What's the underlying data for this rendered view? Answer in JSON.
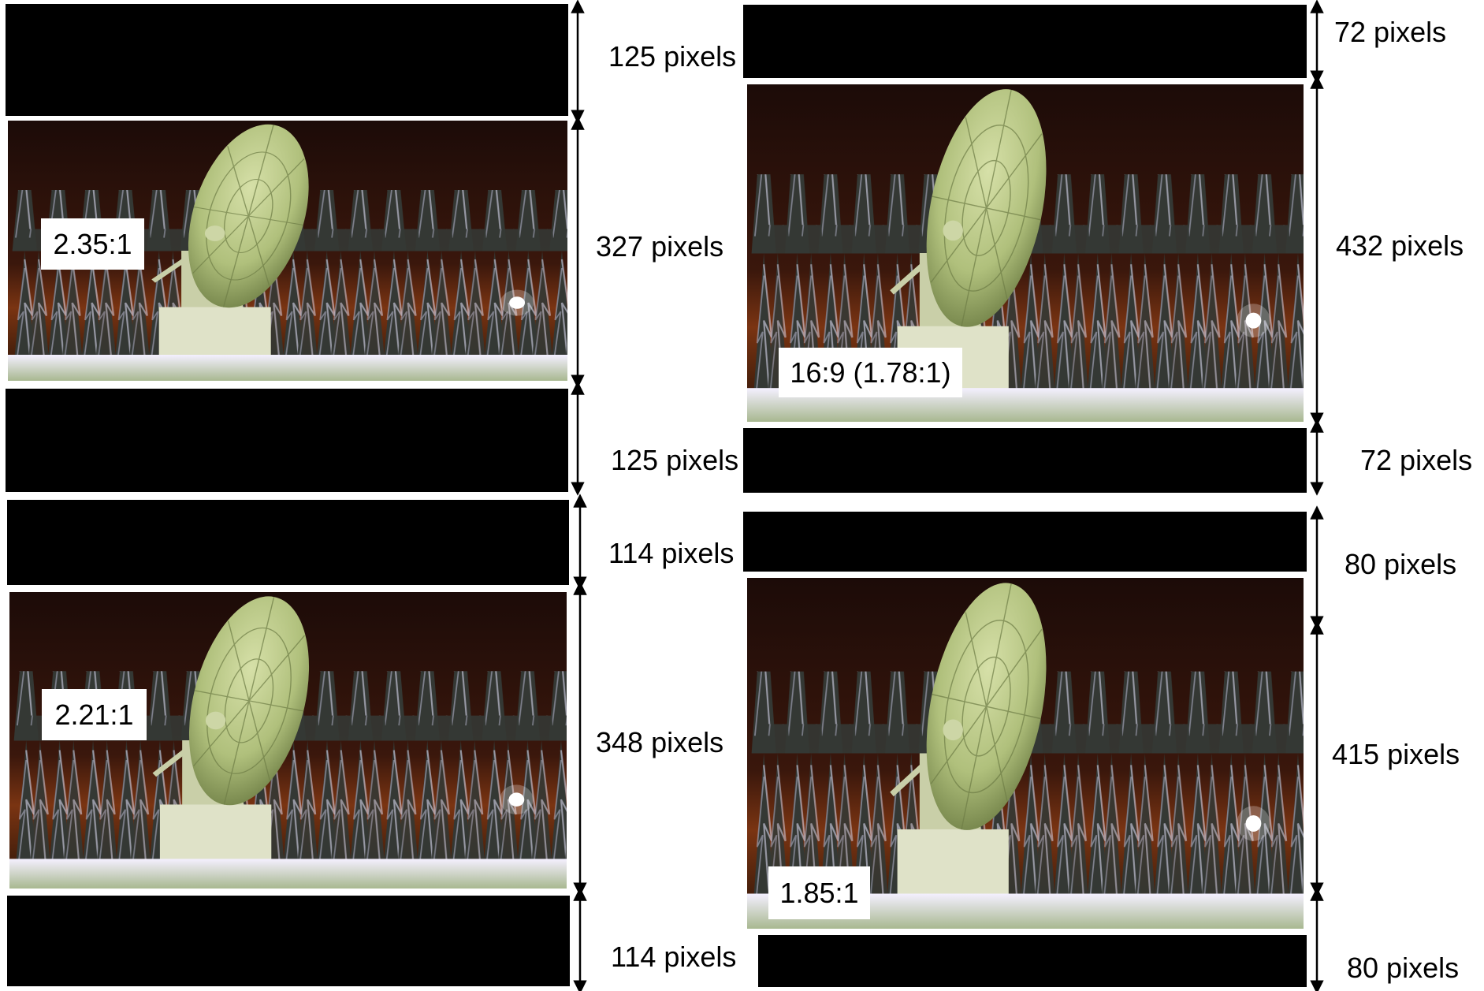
{
  "panels": [
    {
      "ratio": "2.35:1",
      "top_bar": "125 pixels",
      "image_height": "327 pixels",
      "bottom_bar": "125 pixels"
    },
    {
      "ratio": "16:9 (1.78:1)",
      "top_bar": "72 pixels",
      "image_height": "432 pixels",
      "bottom_bar": "72 pixels"
    },
    {
      "ratio": "2.21:1",
      "top_bar": "114 pixels",
      "image_height": "348 pixels",
      "bottom_bar": "114 pixels"
    },
    {
      "ratio": "1.85:1",
      "top_bar": "80 pixels",
      "image_height": "415 pixels",
      "bottom_bar": "80 pixels"
    }
  ],
  "colors": {
    "sky": "#2a120c",
    "sky_glow": "#6a2a12",
    "dish": "#b8c890",
    "snow": "#e8e4f4",
    "trees": "#3a3c3a",
    "letterbox": "#000000"
  }
}
